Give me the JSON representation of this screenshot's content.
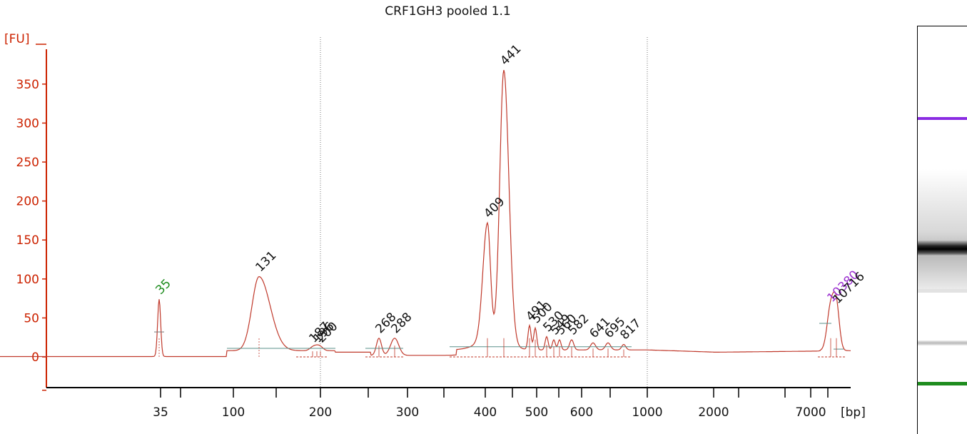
{
  "chart_data": {
    "type": "line",
    "title": "CRF1GH3 pooled 1.1",
    "ylabel": "[FU]",
    "xlabel": "[bp]",
    "ylim": [
      -40,
      380
    ],
    "y_ticks": [
      0,
      50,
      100,
      150,
      200,
      250,
      300,
      350
    ],
    "x_tick_labels": [
      "35",
      "100",
      "200",
      "300",
      "400",
      "500",
      "600",
      "1000",
      "2000",
      "7000"
    ],
    "grid": "vertical dotted at 200 and 1000 bp",
    "series_color": "#c0392b",
    "peaks": [
      {
        "label": "35",
        "fu": 74,
        "color": "#1e8c1e"
      },
      {
        "label": "131",
        "fu": 103,
        "color": "#111111"
      },
      {
        "label": "187",
        "fu": 12,
        "color": "#111111"
      },
      {
        "label": "196",
        "fu": 12,
        "color": "#111111"
      },
      {
        "label": "200",
        "fu": 12,
        "color": "#111111"
      },
      {
        "label": "268",
        "fu": 24,
        "color": "#111111"
      },
      {
        "label": "288",
        "fu": 24,
        "color": "#111111"
      },
      {
        "label": "409",
        "fu": 172,
        "color": "#111111"
      },
      {
        "label": "441",
        "fu": 368,
        "color": "#111111"
      },
      {
        "label": "491",
        "fu": 40,
        "color": "#111111"
      },
      {
        "label": "500",
        "fu": 37,
        "color": "#111111"
      },
      {
        "label": "530",
        "fu": 26,
        "color": "#111111"
      },
      {
        "label": "549",
        "fu": 22,
        "color": "#111111"
      },
      {
        "label": "560",
        "fu": 22,
        "color": "#111111"
      },
      {
        "label": "582",
        "fu": 22,
        "color": "#111111"
      },
      {
        "label": "641",
        "fu": 18,
        "color": "#111111"
      },
      {
        "label": "695",
        "fu": 18,
        "color": "#111111"
      },
      {
        "label": "817",
        "fu": 16,
        "color": "#111111"
      },
      {
        "label": "10380",
        "fu": 64,
        "color": "#9b30d0"
      },
      {
        "label": "10716",
        "fu": 62,
        "color": "#111111"
      }
    ]
  }
}
